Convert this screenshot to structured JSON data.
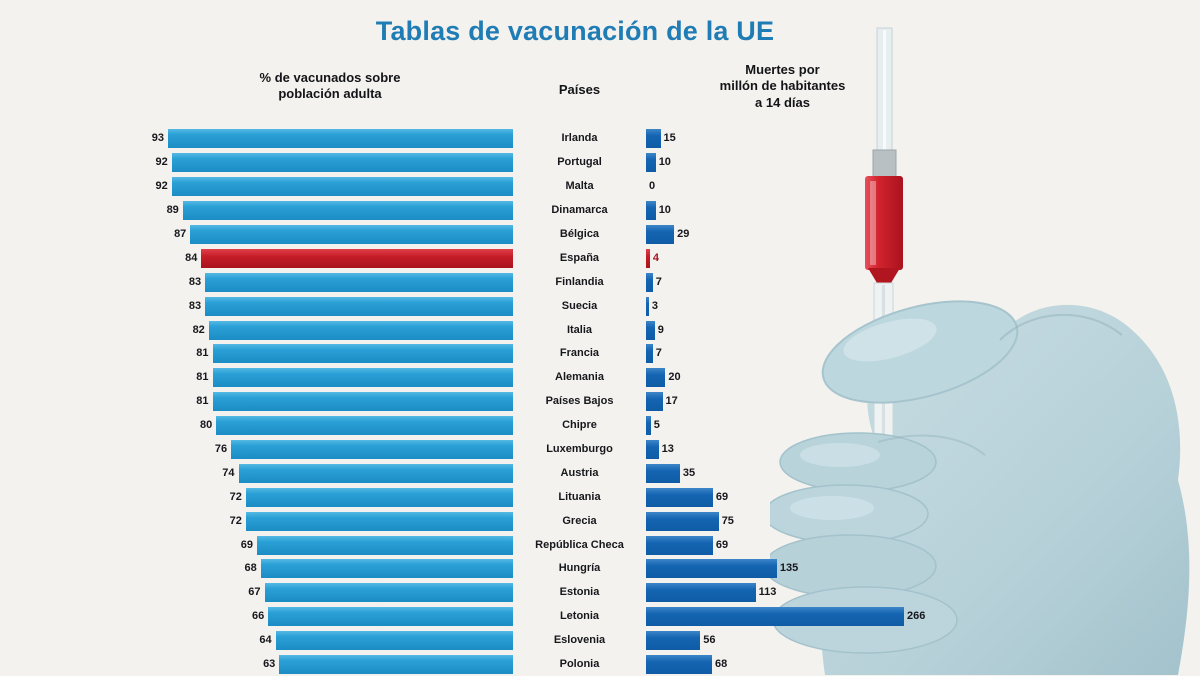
{
  "title": "Tablas de vacunación de la UE",
  "headers": {
    "left": "% de vacunados sobre\npoblación adulta",
    "countries": "Países",
    "right": "Muertes por\nmillón de habitantes\na 14 días"
  },
  "chart_data": {
    "type": "bar",
    "orientation": "horizontal",
    "title": "Tablas de vacunación de la UE",
    "categories": [
      "Irlanda",
      "Portugal",
      "Malta",
      "Dinamarca",
      "Bélgica",
      "España",
      "Finlandia",
      "Suecia",
      "Italia",
      "Francia",
      "Alemania",
      "Países Bajos",
      "Chipre",
      "Luxemburgo",
      "Austria",
      "Lituania",
      "Grecia",
      "República Checa",
      "Hungría",
      "Estonia",
      "Letonia",
      "Eslovenia",
      "Polonia"
    ],
    "series": [
      {
        "name": "% de vacunados sobre población adulta",
        "values": [
          93,
          92,
          92,
          89,
          87,
          84,
          83,
          83,
          82,
          81,
          81,
          81,
          80,
          76,
          74,
          72,
          72,
          69,
          68,
          67,
          66,
          64,
          63
        ]
      },
      {
        "name": "Muertes por millón de habitantes a 14 días",
        "values": [
          15,
          10,
          0,
          10,
          29,
          4,
          7,
          3,
          9,
          7,
          20,
          17,
          5,
          13,
          35,
          69,
          75,
          69,
          135,
          113,
          266,
          56,
          68
        ]
      }
    ],
    "highlight_category": "España",
    "left_axis_max": 93,
    "right_axis_max": 266,
    "left_bars_alignment": "right",
    "right_bars_alignment": "left",
    "grid": false,
    "legend": false
  },
  "colors": {
    "background": "#f4f2ee",
    "title": "#1f7cb4",
    "left_bar": "#2aa0d6",
    "right_bar": "#1565b2",
    "highlight_bar": "#c41d28",
    "text": "#16181d",
    "glove": "#bcd2d9",
    "syringe_liquid": "#d2232e"
  },
  "illustration": {
    "name": "hand-holding-syringe"
  }
}
